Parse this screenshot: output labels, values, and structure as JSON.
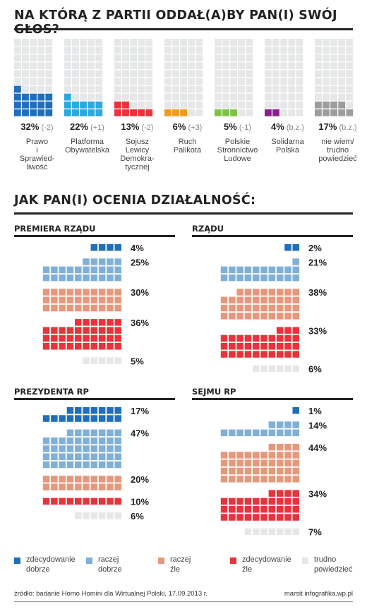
{
  "title1": "NA KTÓRĄ Z PARTII ODDAŁ(A)BY PAN(I) SWÓJ GŁOS?",
  "title2": "JAK PAN(I) OCENIA DZIAŁALNOŚĆ:",
  "colors": {
    "empty": "#e6e7e8",
    "zdecydowanie_dobrze": "#1f6fba",
    "raczej_dobrze": "#7fb0d9",
    "raczej_zle": "#e6987d",
    "zdecydowanie_zle": "#e8333b",
    "trudno": "#e6e7e8",
    "pis": "#1f6fba",
    "po": "#2aa9e0",
    "sld": "#e8333b",
    "rp": "#f39a1e",
    "psl": "#7dc242",
    "sp": "#8b1e8b",
    "nw": "#9d9d9d"
  },
  "chart_data": [
    {
      "type": "bar",
      "title": "NA KTÓRĄ Z PARTII ODDAŁ(A)BY PAN(I) SWÓJ GŁOS?",
      "categories": [
        "Prawo i Sprawiedliwość",
        "Platforma Obywatelska",
        "Sojusz Lewicy Demokratycznej",
        "Ruch Palikota",
        "Polskie Stronnictwo Ludowe",
        "Solidarna Polska",
        "nie wiem/ trudno powiedzieć"
      ],
      "values": [
        32,
        22,
        13,
        6,
        5,
        4,
        17
      ],
      "unit": "%",
      "changes": [
        "(-2)",
        "(+1)",
        "(-2)",
        "(+3)",
        "(-1)",
        "(b.z.)",
        "(b.z.)"
      ]
    },
    {
      "type": "bar",
      "title": "JAK PAN(I) OCENIA DZIAŁALNOŚĆ:",
      "categories": [
        "PREMIERA RZĄDU",
        "RZĄDU",
        "PREZYDENTA RP",
        "SEJMU RP"
      ],
      "series": [
        {
          "name": "zdecydowanie dobrze",
          "values": [
            4,
            2,
            17,
            1
          ]
        },
        {
          "name": "raczej dobrze",
          "values": [
            25,
            21,
            47,
            14
          ]
        },
        {
          "name": "raczej źle",
          "values": [
            30,
            38,
            20,
            44
          ]
        },
        {
          "name": "zdecydowanie źle",
          "values": [
            36,
            33,
            10,
            34
          ]
        },
        {
          "name": "trudno powiedzieć",
          "values": [
            5,
            6,
            6,
            7
          ]
        }
      ],
      "unit": "%"
    }
  ],
  "parties": [
    {
      "pct": "32%",
      "chg": "(-2)",
      "name": "Prawo\ni\nSprawied-\nliwość",
      "value": 32,
      "color_key": "pis"
    },
    {
      "pct": "22%",
      "chg": "(+1)",
      "name": "Platforma\nObywatelska",
      "value": 22,
      "color_key": "po"
    },
    {
      "pct": "13%",
      "chg": "(-2)",
      "name": "Sojusz\nLewicy\nDemokra-\ntycznej",
      "value": 13,
      "color_key": "sld"
    },
    {
      "pct": "6%",
      "chg": "(+3)",
      "name": "Ruch\nPalikota",
      "value": 6,
      "color_key": "rp"
    },
    {
      "pct": "5%",
      "chg": "(-1)",
      "name": "Polskie\nStronnictwo\nLudowe",
      "value": 5,
      "color_key": "psl"
    },
    {
      "pct": "4%",
      "chg": "(b.z.)",
      "name": "Solidarna\nPolska",
      "value": 4,
      "color_key": "sp"
    },
    {
      "pct": "17%",
      "chg": "(b.z.)",
      "name": "nie wiem/\ntrudno\npowiedzieć",
      "value": 17,
      "color_key": "nw"
    }
  ],
  "panels": [
    {
      "title": "PREMIERA RZĄDU",
      "rows": [
        {
          "pct": "4%",
          "value": 4,
          "color_key": "zdecydowanie_dobrze"
        },
        {
          "pct": "25%",
          "value": 25,
          "color_key": "raczej_dobrze"
        },
        {
          "pct": "30%",
          "value": 30,
          "color_key": "raczej_zle"
        },
        {
          "pct": "36%",
          "value": 36,
          "color_key": "zdecydowanie_zle"
        },
        {
          "pct": "5%",
          "value": 5,
          "color_key": "trudno"
        }
      ]
    },
    {
      "title": "RZĄDU",
      "rows": [
        {
          "pct": "2%",
          "value": 2,
          "color_key": "zdecydowanie_dobrze"
        },
        {
          "pct": "21%",
          "value": 21,
          "color_key": "raczej_dobrze"
        },
        {
          "pct": "38%",
          "value": 38,
          "color_key": "raczej_zle"
        },
        {
          "pct": "33%",
          "value": 33,
          "color_key": "zdecydowanie_zle"
        },
        {
          "pct": "6%",
          "value": 6,
          "color_key": "trudno"
        }
      ]
    },
    {
      "title": "PREZYDENTA RP",
      "rows": [
        {
          "pct": "17%",
          "value": 17,
          "color_key": "zdecydowanie_dobrze"
        },
        {
          "pct": "47%",
          "value": 47,
          "color_key": "raczej_dobrze"
        },
        {
          "pct": "20%",
          "value": 20,
          "color_key": "raczej_zle"
        },
        {
          "pct": "10%",
          "value": 10,
          "color_key": "zdecydowanie_zle"
        },
        {
          "pct": "6%",
          "value": 6,
          "color_key": "trudno"
        }
      ]
    },
    {
      "title": "SEJMU RP",
      "rows": [
        {
          "pct": "1%",
          "value": 1,
          "color_key": "zdecydowanie_dobrze"
        },
        {
          "pct": "14%",
          "value": 14,
          "color_key": "raczej_dobrze"
        },
        {
          "pct": "44%",
          "value": 44,
          "color_key": "raczej_zle"
        },
        {
          "pct": "34%",
          "value": 34,
          "color_key": "zdecydowanie_zle"
        },
        {
          "pct": "7%",
          "value": 7,
          "color_key": "trudno"
        }
      ]
    }
  ],
  "legend": [
    {
      "label": "zdecydowanie\ndobrze",
      "color_key": "zdecydowanie_dobrze"
    },
    {
      "label": "raczej\ndobrze",
      "color_key": "raczej_dobrze"
    },
    {
      "label": "raczej\nźle",
      "color_key": "raczej_zle"
    },
    {
      "label": "zdecydowanie\nźle",
      "color_key": "zdecydowanie_zle"
    },
    {
      "label": "trudno\npowiedzieć",
      "color_key": "trudno"
    }
  ],
  "footer": {
    "source": "źródło: badanie Homo Homini dla Wirtualnej Polski, 17.09.2013 r.",
    "credit": "marsit infografika.wp.pl"
  }
}
